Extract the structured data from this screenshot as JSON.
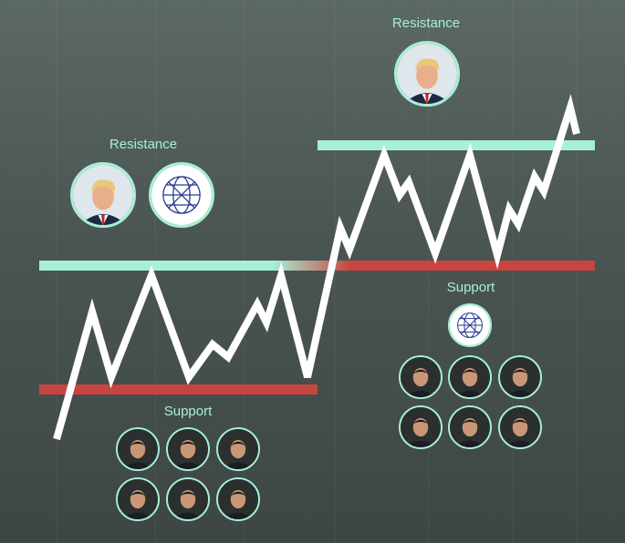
{
  "labels": {
    "resistance_left": "Resistance",
    "resistance_right": "Resistance",
    "support_left": "Support",
    "support_right": "Support"
  },
  "colors": {
    "resistance": "#a6f0d6",
    "support": "#c8443f",
    "price_line": "#ffffff",
    "label": "#a6f0d6"
  },
  "icons": {
    "trump_portrait": "trump-portrait-icon",
    "globe_logo": "globe-logo-icon",
    "politician_portrait": "politician-portrait-icon"
  }
}
